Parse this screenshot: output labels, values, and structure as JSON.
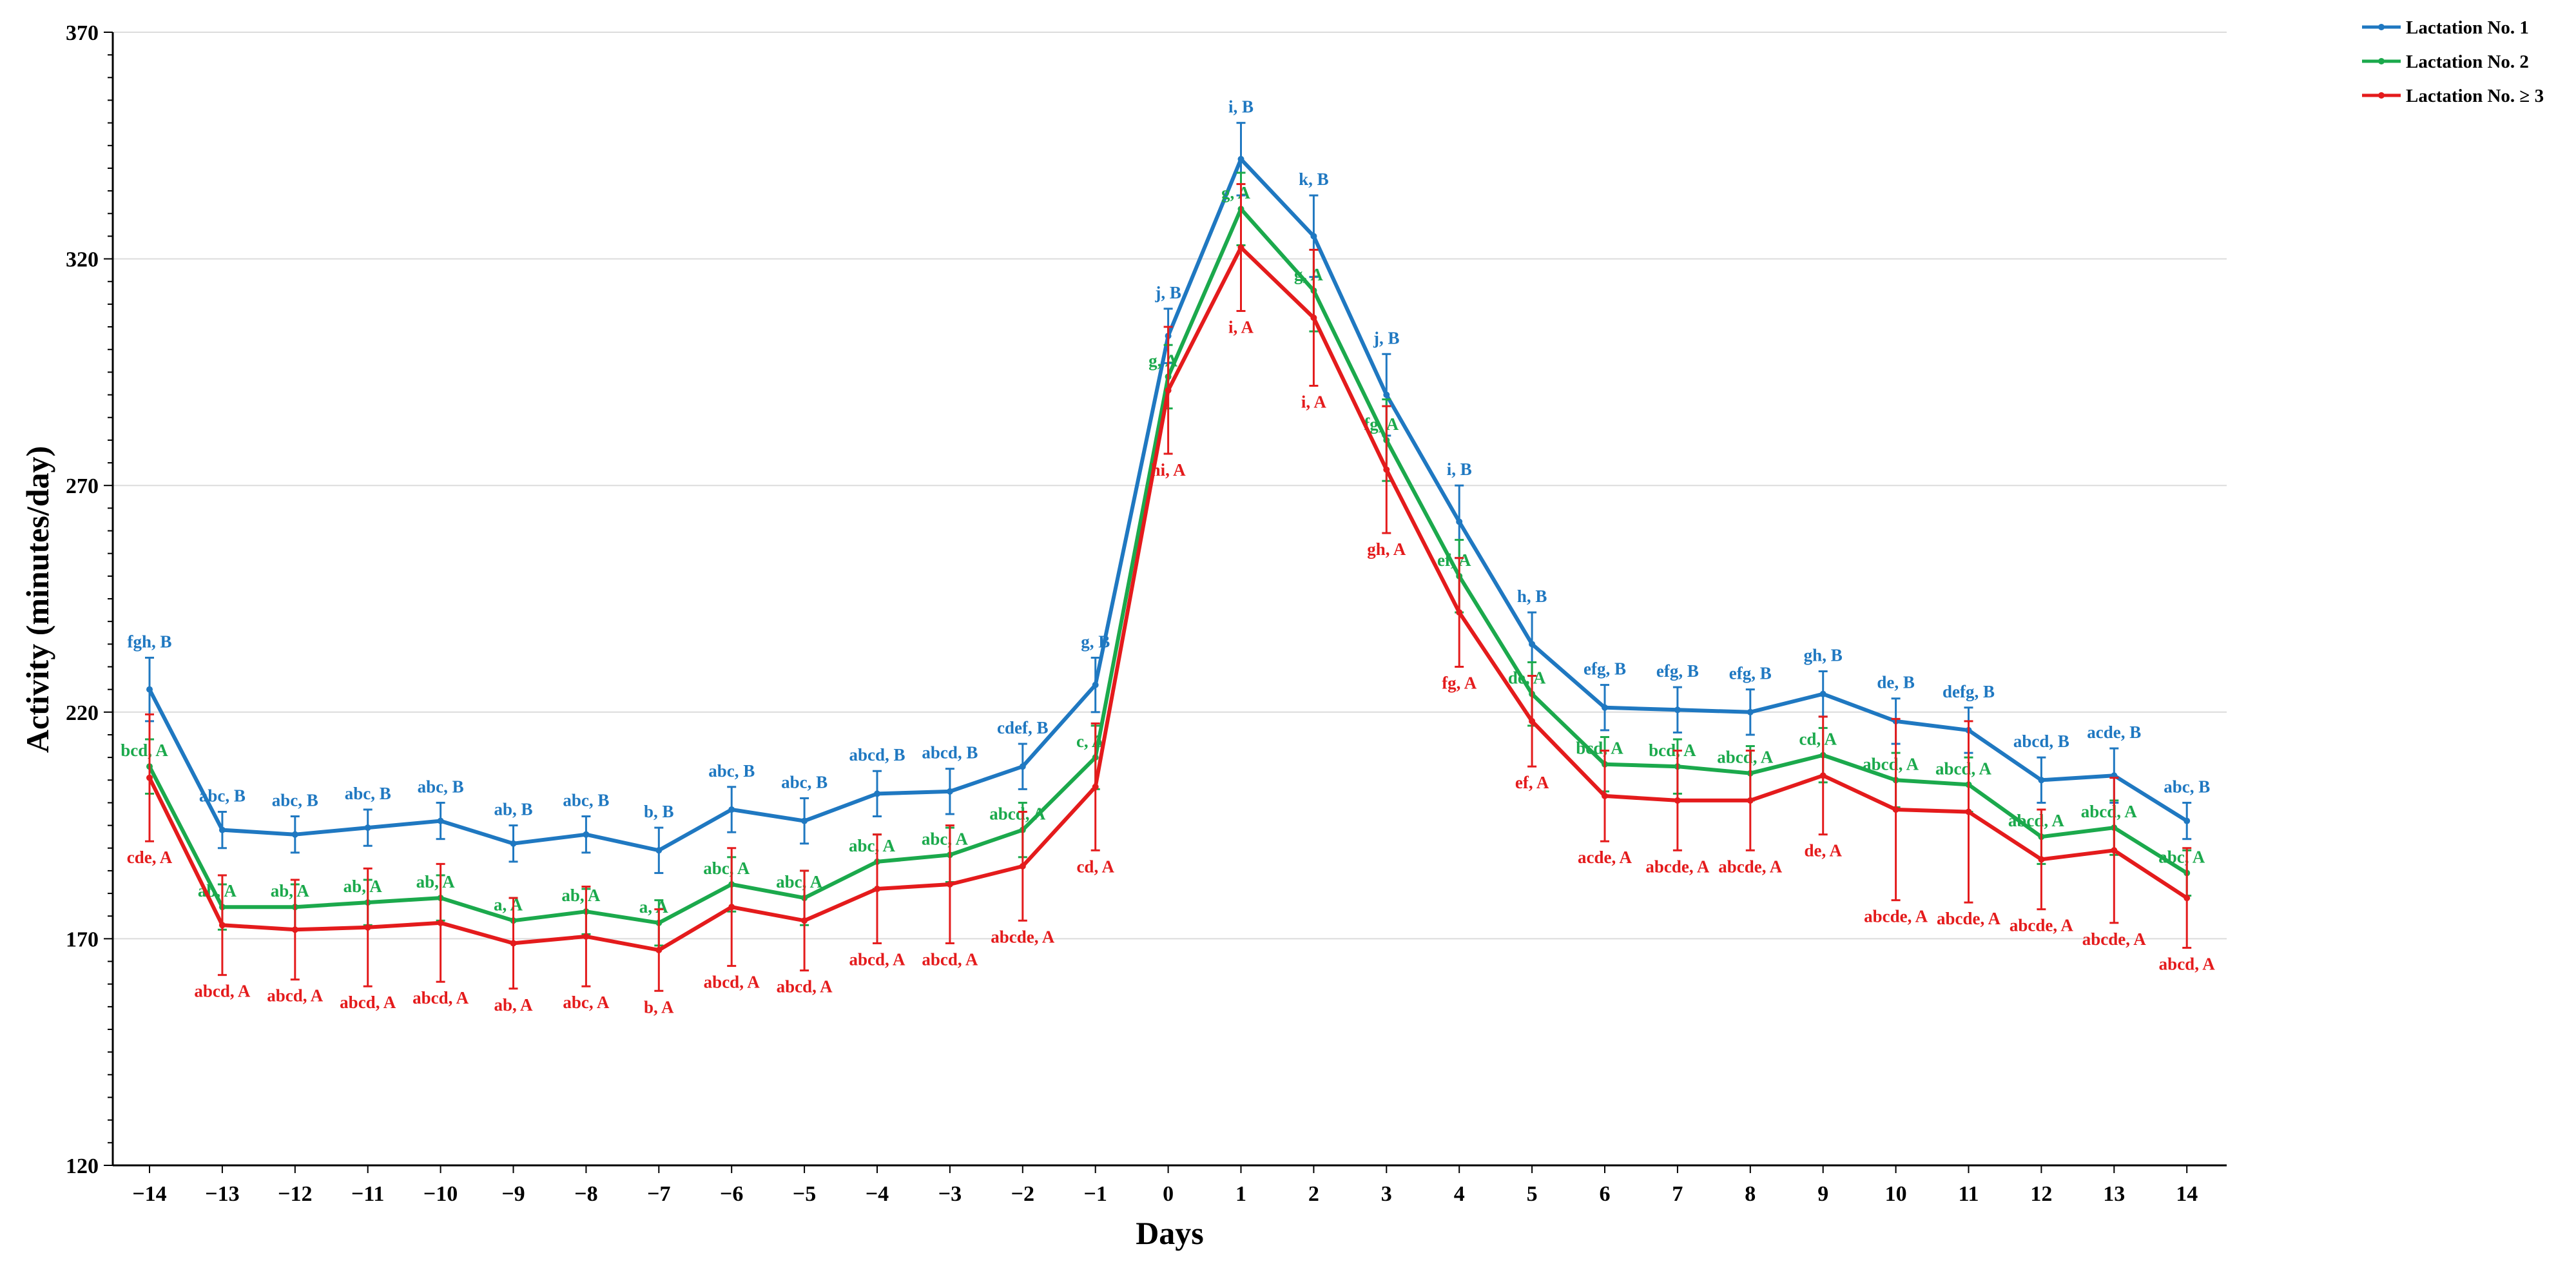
{
  "chart_data": {
    "type": "line",
    "title": "",
    "xlabel": "Days",
    "ylabel": "Activity (minutes/day)",
    "ylim": [
      120,
      370
    ],
    "yticks": [
      120,
      170,
      220,
      270,
      320,
      370
    ],
    "x": [
      -14,
      -13,
      -12,
      -11,
      -10,
      -9,
      -8,
      -7,
      -6,
      -5,
      -4,
      -3,
      -2,
      -1,
      0,
      1,
      2,
      3,
      4,
      5,
      6,
      7,
      8,
      9,
      10,
      11,
      12,
      13,
      14
    ],
    "x_labels": [
      "−14",
      "−13",
      "−12",
      "−11",
      "−10",
      "−9",
      "−8",
      "−7",
      "−6",
      "−5",
      "−4",
      "−3",
      "−2",
      "−1",
      "0",
      "1",
      "2",
      "3",
      "4",
      "5",
      "6",
      "7",
      "8",
      "9",
      "10",
      "11",
      "12",
      "13",
      "14"
    ],
    "grid": "horizontal",
    "legend_position": "top-right",
    "series": [
      {
        "name": "Lactation No. 1",
        "color": "#1F78C1",
        "label_side": "above",
        "values": [
          225,
          194,
          193,
          194.5,
          196,
          191,
          193,
          189.5,
          198.5,
          196,
          202,
          202.5,
          208,
          226,
          303,
          342,
          325,
          290,
          262,
          235,
          221,
          220.5,
          220,
          224,
          218,
          216,
          205,
          206,
          196
        ],
        "errors": [
          7,
          4,
          4,
          4,
          4,
          4,
          4,
          5,
          5,
          5,
          5,
          5,
          5,
          6,
          6,
          8,
          9,
          9,
          8,
          7,
          5,
          5,
          5,
          5,
          5,
          5,
          5,
          6,
          4
        ],
        "labels": [
          "fgh, B",
          "abc, B",
          "abc, B",
          "abc, B",
          "abc, B",
          "ab, B",
          "abc, B",
          "b, B",
          "abc, B",
          "abc, B",
          "abcd, B",
          "abcd, B",
          "cdef, B",
          "g, B",
          "j, B",
          "i, B",
          "k, B",
          "j, B",
          "i, B",
          "h, B",
          "efg, B",
          "efg, B",
          "efg, B",
          "gh, B",
          "de, B",
          "defg, B",
          "abcd, B",
          "acde, B",
          "abc, B"
        ]
      },
      {
        "name": "Lactation No. 2",
        "color": "#1BA94C",
        "label_side": "left",
        "values": [
          208,
          177,
          177,
          178,
          179,
          174,
          176,
          173.5,
          182,
          179,
          187,
          188.5,
          194,
          210,
          294,
          331,
          313,
          280,
          250,
          224,
          208.5,
          208,
          206.5,
          210.5,
          205,
          204,
          192.5,
          194.5,
          184.5
        ],
        "errors": [
          6,
          5,
          5,
          5,
          5,
          5,
          5,
          5,
          6,
          6,
          6,
          6,
          6,
          7,
          7,
          8,
          9,
          9,
          8,
          7,
          6,
          6,
          6,
          6,
          6,
          6,
          6,
          6,
          5
        ],
        "labels": [
          "bcd, A",
          "ab, A",
          "ab, A",
          "ab, A",
          "ab, A",
          "a, A",
          "ab, A",
          "a, A",
          "abc, A",
          "abc, A",
          "abc, A",
          "abc, A",
          "abcd, A",
          "c, A",
          "g, A",
          "g, A",
          "g, A",
          "fg, A",
          "ef, A",
          "de, A",
          "bcd, A",
          "bcd, A",
          "abcd, A",
          "cd, A",
          "abcd, A",
          "abcd, A",
          "abcd, A",
          "abcd, A",
          "abc, A"
        ]
      },
      {
        "name": "Lactation No. ≥ 3",
        "color": "#E41B1C",
        "label_side": "below",
        "values": [
          205.5,
          173,
          172,
          172.5,
          173.5,
          169,
          170.5,
          167.5,
          177,
          174,
          181,
          182,
          186,
          203.5,
          291,
          322.5,
          307,
          273.5,
          242,
          218,
          201.5,
          200.5,
          200.5,
          206,
          198.5,
          198,
          187.5,
          189.5,
          179
        ],
        "errors": [
          14,
          11,
          11,
          13,
          13,
          10,
          11,
          9,
          13,
          11,
          12,
          13,
          12,
          14,
          14,
          14,
          15,
          14,
          12,
          10,
          10,
          11,
          11,
          13,
          20,
          20,
          11,
          16,
          11
        ],
        "labels": [
          "cde, A",
          "abcd, A",
          "abcd, A",
          "abcd, A",
          "abcd, A",
          "ab, A",
          "abc, A",
          "b, A",
          "abcd, A",
          "abcd, A",
          "abcd, A",
          "abcd, A",
          "abcde, A",
          "cd, A",
          "hi, A",
          "i, A",
          "i, A",
          "gh, A",
          "fg, A",
          "ef, A",
          "acde, A",
          "abcde, A",
          "abcde, A",
          "de, A",
          "abcde, A",
          "abcde, A",
          "abcde, A",
          "abcde, A",
          "abcd, A"
        ]
      }
    ]
  }
}
